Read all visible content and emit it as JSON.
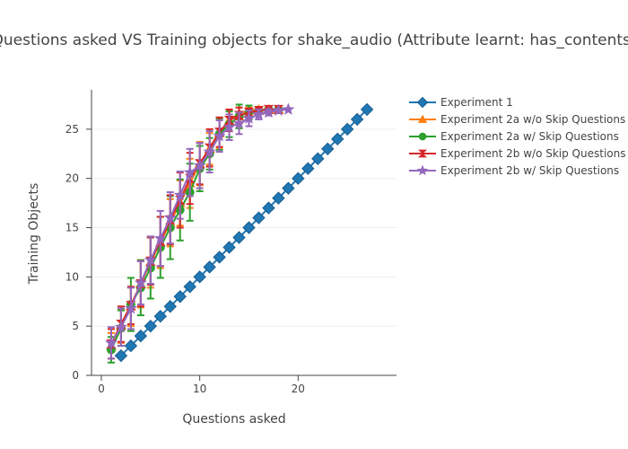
{
  "chart_data": {
    "type": "line",
    "title": "Questions asked VS Training objects for shake_audio (Attribute learnt: has_contents)",
    "xlabel": "Questions asked",
    "ylabel": "Training Objects",
    "xlim": [
      -1,
      30
    ],
    "ylim": [
      0,
      29
    ],
    "xticks": [
      0,
      10,
      20
    ],
    "yticks": [
      0,
      5,
      10,
      15,
      20,
      25
    ],
    "grid": "horizontal",
    "legend_position": "right",
    "series": [
      {
        "name": "Experiment 1",
        "color": "#1f77b4",
        "marker": "diamond",
        "x": [
          2,
          3,
          4,
          5,
          6,
          7,
          8,
          9,
          10,
          11,
          12,
          13,
          14,
          15,
          16,
          17,
          18,
          19,
          20,
          21,
          22,
          23,
          24,
          25,
          26,
          27
        ],
        "y": [
          2,
          3,
          4,
          5,
          6,
          7,
          8,
          9,
          10,
          11,
          12,
          13,
          14,
          15,
          16,
          17,
          18,
          19,
          20,
          21,
          22,
          23,
          24,
          25,
          26,
          27
        ]
      },
      {
        "name": "Experiment 2a w/o Skip Questions",
        "color": "#ff7f0e",
        "marker": "triangle-up",
        "x": [
          1,
          2,
          3,
          4,
          5,
          6,
          7,
          8,
          9,
          10,
          11,
          12,
          13,
          14,
          15,
          16,
          17,
          18
        ],
        "y": [
          3.0,
          5.0,
          7.0,
          9.3,
          11.5,
          13.5,
          15.5,
          17.5,
          19.5,
          21.5,
          23.0,
          24.6,
          25.9,
          26.6,
          26.9,
          27.0,
          27.0,
          27.0
        ],
        "error": [
          1.3,
          1.7,
          2.0,
          2.4,
          2.6,
          2.6,
          2.4,
          2.3,
          2.5,
          2.2,
          1.6,
          1.5,
          1.1,
          0.6,
          0.3,
          0.2,
          0.1,
          0.0
        ]
      },
      {
        "name": "Experiment 2a w/ Skip Questions",
        "color": "#2ca02c",
        "marker": "circle",
        "x": [
          1,
          2,
          3,
          4,
          5,
          6,
          7,
          8,
          9,
          10,
          11,
          12,
          13,
          14,
          15,
          16,
          17,
          18
        ],
        "y": [
          2.6,
          4.8,
          7.2,
          8.9,
          10.9,
          13.0,
          15.0,
          16.8,
          18.6,
          21.0,
          22.5,
          24.5,
          25.5,
          26.3,
          26.7,
          26.9,
          27.0,
          27.0
        ],
        "error": [
          1.3,
          1.8,
          2.7,
          2.8,
          3.1,
          3.1,
          3.2,
          3.1,
          2.9,
          2.3,
          1.6,
          1.6,
          1.3,
          1.2,
          0.7,
          0.3,
          0.1,
          0.0
        ]
      },
      {
        "name": "Experiment 2b w/o Skip Questions",
        "color": "#d62728",
        "marker": "hourglass",
        "x": [
          1,
          2,
          3,
          4,
          5,
          6,
          7,
          8,
          9,
          10,
          11,
          12,
          13,
          14,
          15,
          16,
          17,
          18
        ],
        "y": [
          3.2,
          5.2,
          7.1,
          9.3,
          11.6,
          13.6,
          15.8,
          17.8,
          20.0,
          21.5,
          23.1,
          24.7,
          25.9,
          26.4,
          26.7,
          26.9,
          27.0,
          27.0
        ],
        "error": [
          1.5,
          1.8,
          1.9,
          2.3,
          2.4,
          2.5,
          2.5,
          2.8,
          2.6,
          2.1,
          1.9,
          1.5,
          1.1,
          0.8,
          0.4,
          0.2,
          0.1,
          0.0
        ]
      },
      {
        "name": "Experiment 2b w/ Skip Questions",
        "color": "#9467bd",
        "marker": "star",
        "x": [
          1,
          2,
          3,
          4,
          5,
          6,
          7,
          8,
          9,
          10,
          11,
          12,
          13,
          14,
          15,
          16,
          17,
          18,
          19
        ],
        "y": [
          3.3,
          4.9,
          6.8,
          9.4,
          11.7,
          13.9,
          16.0,
          18.3,
          20.6,
          21.3,
          22.7,
          24.3,
          25.2,
          25.6,
          26.1,
          26.5,
          26.7,
          26.9,
          27.0
        ],
        "error": [
          1.6,
          1.9,
          2.1,
          2.2,
          2.4,
          2.8,
          2.6,
          2.4,
          2.4,
          2.3,
          2.1,
          1.6,
          1.3,
          1.1,
          0.8,
          0.5,
          0.3,
          0.1,
          0.0
        ]
      }
    ]
  }
}
